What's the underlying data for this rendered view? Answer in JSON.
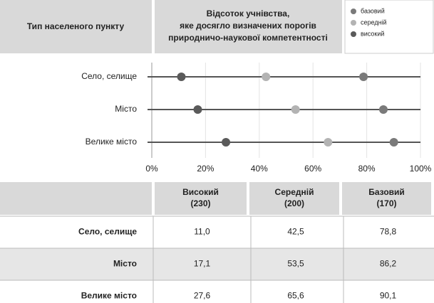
{
  "header": {
    "left": "Тип населеного пункту"
  },
  "chart_data": {
    "type": "dot",
    "title": [
      "Відсоток учнівства,",
      "яке досягло визначених порогів",
      "природничо-наукової компетентності"
    ],
    "categories": [
      "Село, селище",
      "Місто",
      "Велике місто"
    ],
    "series": [
      {
        "name": "базовий",
        "color": "#7a7a7a",
        "values": [
          78.8,
          86.2,
          90.1
        ]
      },
      {
        "name": "середній",
        "color": "#b3b3b3",
        "values": [
          42.5,
          53.5,
          65.6
        ]
      },
      {
        "name": "високий",
        "color": "#5a5a5a",
        "values": [
          11.0,
          17.1,
          27.6
        ]
      }
    ],
    "xlim": [
      0,
      100
    ],
    "xticks": [
      {
        "value": 0,
        "label": "0%"
      },
      {
        "value": 20,
        "label": "20%"
      },
      {
        "value": 40,
        "label": "40%"
      },
      {
        "value": 60,
        "label": "60%"
      },
      {
        "value": 80,
        "label": "80%"
      },
      {
        "value": 100,
        "label": "100%"
      }
    ],
    "grid": true
  },
  "table": {
    "header": [
      [
        "Високий",
        "(230)"
      ],
      [
        "Середній",
        "(200)"
      ],
      [
        "Базовий",
        "(170)"
      ]
    ],
    "rows": [
      [
        "Село, селище",
        "11,0",
        "42,5",
        "78,8"
      ],
      [
        "Місто",
        "17,1",
        "53,5",
        "86,2"
      ],
      [
        "Велике місто",
        "27,6",
        "65,6",
        "90,1"
      ]
    ]
  }
}
